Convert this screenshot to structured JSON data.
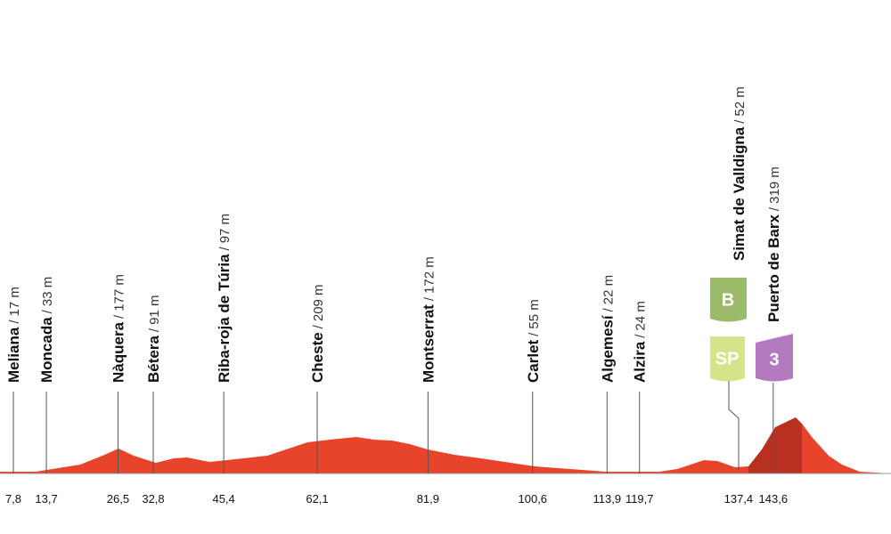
{
  "profile": {
    "points": [
      {
        "name": "Meliana",
        "altitude": "17 m",
        "km": "7,8"
      },
      {
        "name": "Moncada",
        "altitude": "33 m",
        "km": "13,7"
      },
      {
        "name": "Nàquera",
        "altitude": "177 m",
        "km": "26,5"
      },
      {
        "name": "Bétera",
        "altitude": "91 m",
        "km": "32,8"
      },
      {
        "name": "Riba-roja de Túria",
        "altitude": "97 m",
        "km": "45,4"
      },
      {
        "name": "Cheste",
        "altitude": "209 m",
        "km": "62,1"
      },
      {
        "name": "Montserrat",
        "altitude": "172 m",
        "km": "81,9"
      },
      {
        "name": "Carlet",
        "altitude": "55 m",
        "km": "100,6"
      },
      {
        "name": "Algemesí",
        "altitude": "22 m",
        "km": "113,9"
      },
      {
        "name": "Alzira",
        "altitude": "24 m",
        "km": "119,7"
      },
      {
        "name": "Simat de Valldigna",
        "altitude": "52 m",
        "km": "137,4"
      },
      {
        "name": "Puerto de Barx",
        "altitude": "319 m",
        "km": "143,6"
      }
    ],
    "badges": {
      "bonus": "B",
      "sprint": "SP",
      "climb": "3"
    }
  }
}
